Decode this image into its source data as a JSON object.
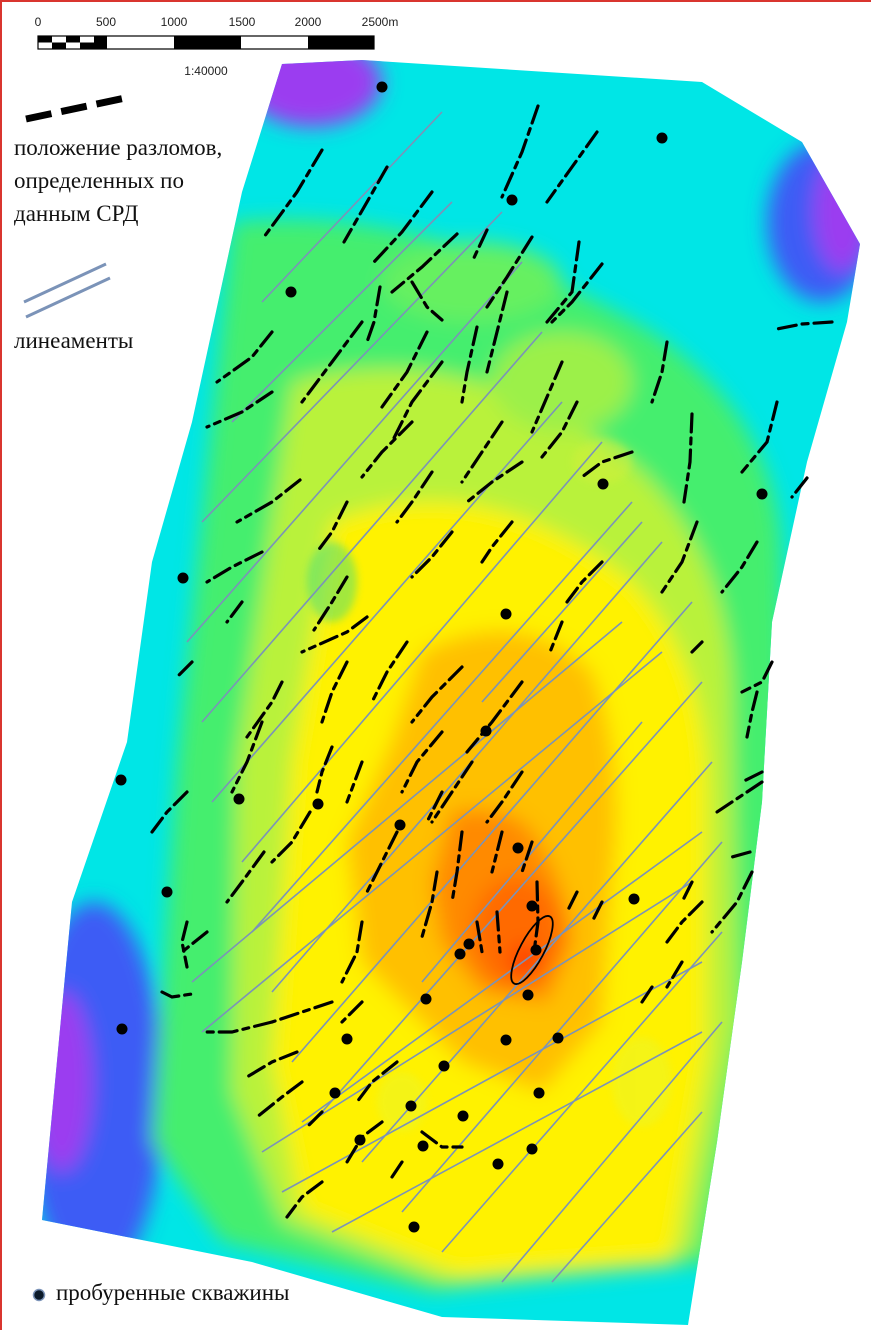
{
  "scale_bar": {
    "ticks": [
      "0",
      "500",
      "1000",
      "1500",
      "2000",
      "2500m"
    ],
    "ratio": "1:40000"
  },
  "legend": {
    "faults_line1": "положение разломов,",
    "faults_line2": "определенных по",
    "faults_line3": "данным СРД",
    "lineaments": "линеаменты",
    "wells": "пробуренные скважины"
  },
  "colors": {
    "fault": "#000000",
    "lineament": "#7b93b8",
    "well": "#000000",
    "frame": "#d9352f",
    "ramp_low": "#8a2be2",
    "ramp_mid": "#fff200",
    "ramp_high": "#ff3b00"
  }
}
